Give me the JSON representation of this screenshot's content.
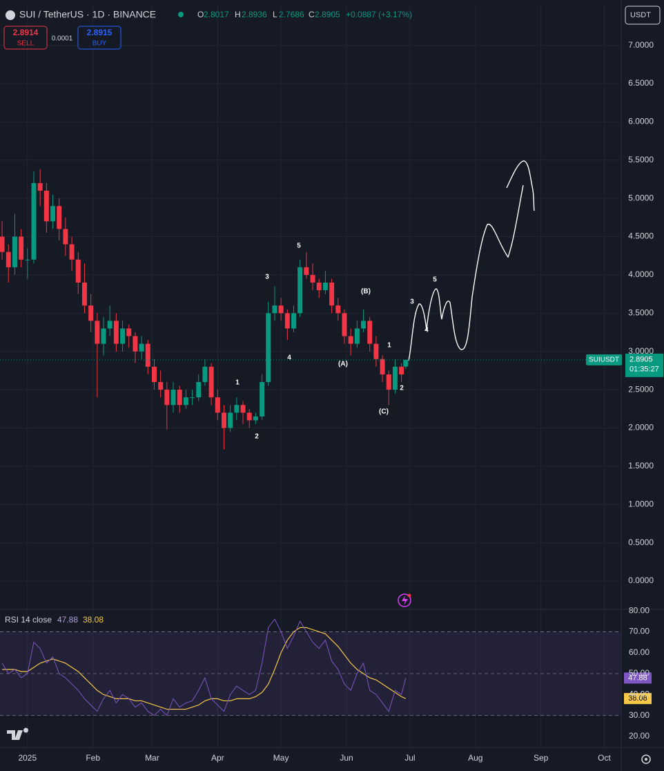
{
  "chart_data": {
    "type": "candlestick",
    "title": "SUI / TetherUS · 1D · BINANCE",
    "ohlc_labels": [
      "O",
      "H",
      "L",
      "C"
    ],
    "change_label": "+0.0887 (+3.17%)",
    "currency": "USDT",
    "sell_price": 2.8914,
    "sell_label": "SELL",
    "spread": 0.0001,
    "buy_price": 2.8915,
    "buy_label": "BUY",
    "symbol": "SUIUSDT",
    "countdown": "01:35:27",
    "up_color": "#089981",
    "down_color": "#f23645",
    "grid": true,
    "x": [
      -12,
      -9,
      -6,
      -3,
      0,
      3,
      6,
      9,
      12,
      15,
      18,
      21,
      24,
      27,
      30,
      33,
      36,
      39,
      42,
      45,
      48,
      51,
      54,
      57,
      60,
      63,
      66,
      69,
      72,
      75,
      78,
      81,
      84,
      87,
      90,
      93,
      96,
      99,
      102,
      105,
      108,
      111,
      114,
      117,
      120,
      123,
      126,
      129,
      132,
      135,
      138,
      141,
      144,
      147,
      150,
      153,
      156,
      159,
      162,
      165,
      168,
      171,
      174,
      177,
      179
    ],
    "ohlc": [
      [
        4.5,
        4.7,
        4.2,
        4.3
      ],
      [
        4.3,
        4.4,
        3.9,
        4.1
      ],
      [
        4.1,
        4.8,
        4.0,
        4.5
      ],
      [
        4.5,
        4.6,
        4.1,
        4.2
      ],
      [
        4.2,
        4.35,
        3.95,
        4.2
      ],
      [
        4.2,
        5.35,
        4.15,
        5.2
      ],
      [
        5.2,
        5.38,
        4.9,
        5.1
      ],
      [
        5.1,
        5.2,
        4.55,
        4.7
      ],
      [
        4.7,
        5.05,
        4.6,
        4.9
      ],
      [
        4.9,
        5.0,
        4.45,
        4.6
      ],
      [
        4.6,
        4.75,
        4.25,
        4.4
      ],
      [
        4.4,
        4.5,
        4.05,
        4.2
      ],
      [
        4.2,
        4.3,
        3.75,
        3.9
      ],
      [
        3.9,
        4.15,
        3.5,
        3.6
      ],
      [
        3.6,
        3.75,
        3.25,
        3.4
      ],
      [
        3.4,
        3.5,
        2.4,
        3.1
      ],
      [
        3.1,
        3.45,
        2.95,
        3.3
      ],
      [
        3.3,
        3.6,
        3.2,
        3.4
      ],
      [
        3.4,
        3.5,
        3.0,
        3.1
      ],
      [
        3.1,
        3.4,
        3.0,
        3.3
      ],
      [
        3.3,
        3.35,
        3.05,
        3.2
      ],
      [
        3.2,
        3.25,
        2.85,
        3.0
      ],
      [
        3.0,
        3.2,
        2.9,
        3.1
      ],
      [
        3.1,
        3.15,
        2.7,
        2.8
      ],
      [
        2.8,
        2.9,
        2.5,
        2.6
      ],
      [
        2.6,
        2.75,
        2.4,
        2.5
      ],
      [
        2.5,
        2.6,
        1.98,
        2.3
      ],
      [
        2.3,
        2.6,
        2.2,
        2.5
      ],
      [
        2.5,
        2.55,
        2.2,
        2.3
      ],
      [
        2.3,
        2.5,
        2.25,
        2.4
      ],
      [
        2.4,
        2.5,
        2.3,
        2.4
      ],
      [
        2.4,
        2.7,
        2.35,
        2.6
      ],
      [
        2.6,
        2.9,
        2.55,
        2.8
      ],
      [
        2.8,
        2.85,
        2.3,
        2.4
      ],
      [
        2.4,
        2.5,
        2.1,
        2.2
      ],
      [
        2.2,
        2.3,
        1.72,
        2.0
      ],
      [
        2.0,
        2.3,
        1.95,
        2.2
      ],
      [
        2.2,
        2.4,
        2.1,
        2.3
      ],
      [
        2.3,
        2.35,
        2.05,
        2.2
      ],
      [
        2.2,
        2.25,
        2.0,
        2.1
      ],
      [
        2.1,
        2.2,
        2.05,
        2.15
      ],
      [
        2.15,
        2.7,
        2.1,
        2.6
      ],
      [
        2.6,
        3.65,
        2.55,
        3.5
      ],
      [
        3.5,
        3.85,
        3.4,
        3.6
      ],
      [
        3.6,
        3.7,
        3.4,
        3.5
      ],
      [
        3.5,
        3.55,
        3.15,
        3.3
      ],
      [
        3.3,
        3.6,
        3.25,
        3.5
      ],
      [
        3.5,
        4.2,
        3.45,
        4.1
      ],
      [
        4.1,
        4.3,
        3.95,
        4.0
      ],
      [
        4.0,
        4.15,
        3.8,
        3.9
      ],
      [
        3.9,
        3.95,
        3.7,
        3.8
      ],
      [
        3.8,
        4.05,
        3.75,
        3.9
      ],
      [
        3.9,
        3.95,
        3.5,
        3.6
      ],
      [
        3.6,
        3.7,
        3.4,
        3.5
      ],
      [
        3.5,
        3.55,
        3.1,
        3.2
      ],
      [
        3.2,
        3.3,
        2.95,
        3.1
      ],
      [
        3.1,
        3.4,
        3.05,
        3.3
      ],
      [
        3.3,
        3.55,
        3.25,
        3.4
      ],
      [
        3.4,
        3.45,
        3.0,
        3.1
      ],
      [
        3.1,
        3.2,
        2.8,
        2.9
      ],
      [
        2.9,
        2.95,
        2.6,
        2.7
      ],
      [
        2.7,
        2.75,
        2.3,
        2.5
      ],
      [
        2.5,
        2.9,
        2.45,
        2.8
      ],
      [
        2.8,
        2.85,
        2.6,
        2.7
      ],
      [
        2.8017,
        2.8936,
        2.7686,
        2.8905
      ]
    ],
    "xlim": [
      -13,
      281
    ],
    "xticks": [
      {
        "value": 0,
        "label": "2025"
      },
      {
        "value": 31,
        "label": "Feb"
      },
      {
        "value": 59,
        "label": "Mar"
      },
      {
        "value": 90,
        "label": "Apr"
      },
      {
        "value": 120,
        "label": "May"
      },
      {
        "value": 151,
        "label": "Jun"
      },
      {
        "value": 181,
        "label": "Jul"
      },
      {
        "value": 212,
        "label": "Aug"
      },
      {
        "value": 243,
        "label": "Sep"
      },
      {
        "value": 273,
        "label": "Oct"
      }
    ],
    "ylim": [
      -0.37,
      7.52
    ],
    "yticks": [
      {
        "value": 0,
        "label": "0.0000"
      },
      {
        "value": 0.5,
        "label": "0.5000"
      },
      {
        "value": 1,
        "label": "1.0000"
      },
      {
        "value": 1.5,
        "label": "1.5000"
      },
      {
        "value": 2,
        "label": "2.0000"
      },
      {
        "value": 2.5,
        "label": "2.5000"
      },
      {
        "value": 3,
        "label": "3.0000"
      },
      {
        "value": 3.5,
        "label": "3.5000"
      },
      {
        "value": 4,
        "label": "4.0000"
      },
      {
        "value": 4.5,
        "label": "4.5000"
      },
      {
        "value": 5,
        "label": "5.0000"
      },
      {
        "value": 5.5,
        "label": "5.5000"
      },
      {
        "value": 6,
        "label": "6.0000"
      },
      {
        "value": 6.5,
        "label": "6.5000"
      },
      {
        "value": 7,
        "label": "7.0000"
      }
    ],
    "wave_labels": [
      "1",
      "2",
      "3",
      "4",
      "5",
      "(A)",
      "(B)",
      "(C)",
      "1",
      "2",
      "3",
      "4",
      "5"
    ],
    "rsi": {
      "name": "RSI 14 close",
      "color": "#7e57c2",
      "values": [
        55,
        50,
        52,
        48,
        50,
        65,
        62,
        55,
        58,
        50,
        48,
        45,
        42,
        38,
        35,
        32,
        38,
        42,
        36,
        40,
        38,
        34,
        36,
        32,
        30,
        33,
        30,
        38,
        34,
        36,
        37,
        42,
        48,
        38,
        35,
        32,
        40,
        44,
        42,
        40,
        42,
        55,
        72,
        76,
        70,
        62,
        68,
        75,
        70,
        65,
        62,
        66,
        56,
        52,
        45,
        42,
        50,
        55,
        42,
        40,
        36,
        32,
        42,
        40,
        47.88
      ]
    },
    "rsi_ma": {
      "color": "#f7c948",
      "values": [
        52,
        52,
        52,
        51,
        51,
        53,
        55,
        56,
        57,
        56,
        55,
        53,
        51,
        48,
        45,
        42,
        40,
        39,
        38,
        38,
        38,
        37,
        37,
        36,
        35,
        34,
        33,
        33,
        33,
        33,
        34,
        35,
        37,
        38,
        38,
        37,
        37,
        38,
        38,
        38,
        39,
        41,
        45,
        52,
        60,
        66,
        70,
        72,
        72,
        71,
        70,
        69,
        66,
        63,
        59,
        55,
        52,
        50,
        48,
        47,
        45,
        43,
        41,
        39,
        38.08
      ]
    },
    "rsi_levels": [
      30,
      50,
      70
    ],
    "rsi_ylim": [
      14.7,
      80.7
    ],
    "rsi_yticks": [
      {
        "value": 20,
        "label": "20.00"
      },
      {
        "value": 30,
        "label": "30.00"
      },
      {
        "value": 40,
        "label": "40.00"
      },
      {
        "value": 50,
        "label": "50.00"
      },
      {
        "value": 60,
        "label": "60.00"
      },
      {
        "value": 70,
        "label": "70.00"
      },
      {
        "value": 80,
        "label": "80.00"
      }
    ]
  }
}
